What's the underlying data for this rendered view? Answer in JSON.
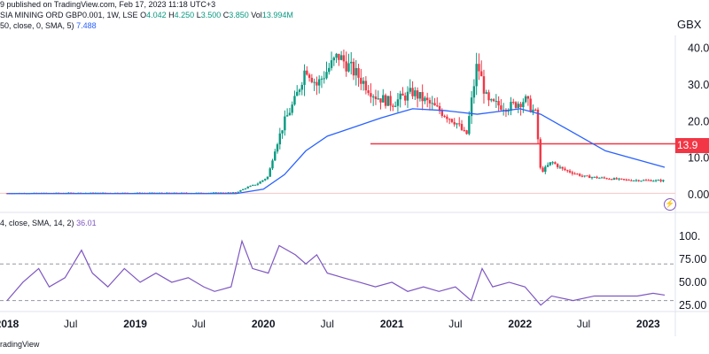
{
  "header": {
    "published": "9 published on TradingView.com, Feb 17, 2023 11:18 UTC+3",
    "symbol": "SIA MINING ORD GBP0.001, 1W, LSE",
    "ohlc": {
      "o_label": "O",
      "o_value": "4.042",
      "h_label": "H",
      "h_value": "4.250",
      "l_label": "L",
      "l_value": "3.500",
      "c_label": "C",
      "c_value": "3.850",
      "vol_label": "Vol",
      "vol_value": "13.994M"
    },
    "ma_label": "50, close, 0, SMA, 5)",
    "ma_value": "7.488",
    "rsi_label": "4, close, SMA, 14, 2)",
    "rsi_value": "36.01"
  },
  "unit": "GBX",
  "price_badge": "13.9",
  "footer": "radingView",
  "colors": {
    "up": "#089981",
    "down": "#f23645",
    "ma": "#2962ff",
    "rsi": "#7e57c2",
    "hline": "#f23645"
  },
  "icons": {
    "lightning": "lightning-icon"
  },
  "chart_data": [
    {
      "type": "candlestick",
      "name": "price",
      "ylim": [
        0,
        45
      ],
      "yticks": [
        "40.0",
        "30.0",
        "20.0",
        "10.0",
        "0.00"
      ],
      "ytick_values": [
        40,
        30,
        20,
        10,
        0
      ],
      "horizontal_line": 13.9,
      "xticks": [
        "2018",
        "Jul",
        "2019",
        "Jul",
        "2020",
        "Jul",
        "2021",
        "Jul",
        "2022",
        "Jul",
        "2023"
      ],
      "x_start": "2018-01-01",
      "x_end": "2023-02-17",
      "sma_series_points": [
        [
          "2018-01-01",
          0.3
        ],
        [
          "2019-10-15",
          0.3
        ],
        [
          "2020-01-01",
          1.5
        ],
        [
          "2020-03-01",
          5.5
        ],
        [
          "2020-05-01",
          12
        ],
        [
          "2020-07-01",
          16
        ],
        [
          "2020-10-01",
          19
        ],
        [
          "2020-12-01",
          21
        ],
        [
          "2021-03-01",
          23.5
        ],
        [
          "2021-06-01",
          23
        ],
        [
          "2021-09-01",
          22
        ],
        [
          "2022-01-01",
          23.5
        ],
        [
          "2022-03-01",
          22
        ],
        [
          "2022-06-01",
          17
        ],
        [
          "2022-09-01",
          12
        ],
        [
          "2023-02-17",
          7.5
        ]
      ],
      "price_points": [
        [
          "2018-01-01",
          0.4
        ],
        [
          "2018-07-01",
          0.5
        ],
        [
          "2019-01-01",
          0.5
        ],
        [
          "2019-07-01",
          0.5
        ],
        [
          "2019-10-15",
          0.6
        ],
        [
          "2019-11-15",
          2
        ],
        [
          "2019-12-15",
          3
        ],
        [
          "2020-01-15",
          5
        ],
        [
          "2020-02-01",
          12
        ],
        [
          "2020-03-01",
          20
        ],
        [
          "2020-04-01",
          26
        ],
        [
          "2020-05-01",
          35
        ],
        [
          "2020-06-01",
          30
        ],
        [
          "2020-07-01",
          34
        ],
        [
          "2020-08-01",
          38
        ],
        [
          "2020-09-01",
          35
        ],
        [
          "2020-10-01",
          32
        ],
        [
          "2020-11-15",
          27
        ],
        [
          "2021-01-01",
          25
        ],
        [
          "2021-03-01",
          28
        ],
        [
          "2021-05-01",
          24
        ],
        [
          "2021-07-01",
          20
        ],
        [
          "2021-08-01",
          16
        ],
        [
          "2021-09-01",
          36
        ],
        [
          "2021-10-01",
          25
        ],
        [
          "2021-12-01",
          24
        ],
        [
          "2022-01-15",
          26
        ],
        [
          "2022-02-15",
          22
        ],
        [
          "2022-03-01",
          6
        ],
        [
          "2022-04-01",
          9
        ],
        [
          "2022-05-01",
          7
        ],
        [
          "2022-07-01",
          5
        ],
        [
          "2022-09-01",
          4.5
        ],
        [
          "2022-11-01",
          4
        ],
        [
          "2023-02-17",
          3.85
        ]
      ]
    },
    {
      "type": "line",
      "name": "RSI",
      "ylim": [
        20,
        105
      ],
      "yticks": [
        "100.",
        "75.00",
        "50.00",
        "25.00"
      ],
      "ytick_values": [
        100,
        75,
        50,
        25
      ],
      "levels": [
        70,
        30
      ],
      "points": [
        [
          "2018-01-01",
          30
        ],
        [
          "2018-02-15",
          50
        ],
        [
          "2018-04-01",
          65
        ],
        [
          "2018-05-01",
          45
        ],
        [
          "2018-06-15",
          55
        ],
        [
          "2018-08-01",
          85
        ],
        [
          "2018-09-01",
          60
        ],
        [
          "2018-10-15",
          45
        ],
        [
          "2018-12-01",
          65
        ],
        [
          "2019-01-15",
          50
        ],
        [
          "2019-03-01",
          60
        ],
        [
          "2019-04-15",
          50
        ],
        [
          "2019-06-01",
          55
        ],
        [
          "2019-07-15",
          45
        ],
        [
          "2019-08-15",
          40
        ],
        [
          "2019-10-01",
          45
        ],
        [
          "2019-11-01",
          95
        ],
        [
          "2019-12-01",
          65
        ],
        [
          "2020-01-15",
          60
        ],
        [
          "2020-02-15",
          90
        ],
        [
          "2020-04-01",
          80
        ],
        [
          "2020-05-01",
          70
        ],
        [
          "2020-06-01",
          80
        ],
        [
          "2020-07-01",
          60
        ],
        [
          "2020-08-15",
          55
        ],
        [
          "2020-10-01",
          50
        ],
        [
          "2020-11-15",
          45
        ],
        [
          "2021-01-01",
          50
        ],
        [
          "2021-02-15",
          40
        ],
        [
          "2021-04-01",
          45
        ],
        [
          "2021-05-15",
          40
        ],
        [
          "2021-07-01",
          45
        ],
        [
          "2021-08-15",
          30
        ],
        [
          "2021-09-15",
          65
        ],
        [
          "2021-10-15",
          45
        ],
        [
          "2021-12-01",
          50
        ],
        [
          "2022-01-15",
          45
        ],
        [
          "2022-03-01",
          25
        ],
        [
          "2022-04-01",
          35
        ],
        [
          "2022-06-01",
          30
        ],
        [
          "2022-08-01",
          35
        ],
        [
          "2022-10-01",
          35
        ],
        [
          "2022-12-01",
          35
        ],
        [
          "2023-01-15",
          38
        ],
        [
          "2023-02-17",
          36
        ]
      ]
    }
  ]
}
